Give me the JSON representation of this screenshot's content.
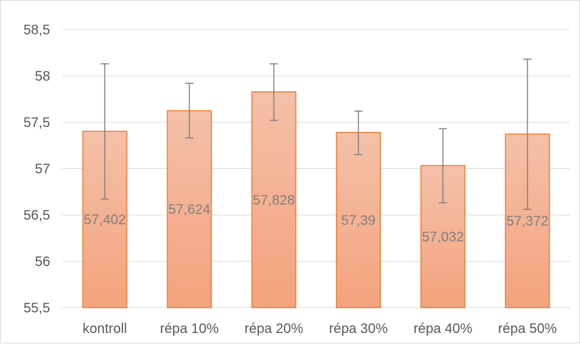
{
  "chart_data": {
    "type": "bar",
    "categories": [
      "kontroll",
      "répa 10%",
      "répa 20%",
      "répa 30%",
      "répa 40%",
      "répa 50%"
    ],
    "series": [
      {
        "values": [
          57.402,
          57.624,
          57.828,
          57.39,
          57.032,
          57.372
        ],
        "error_low": [
          56.67,
          57.33,
          57.52,
          57.15,
          56.63,
          56.56
        ],
        "error_high": [
          58.13,
          57.92,
          58.13,
          57.62,
          57.43,
          58.18
        ]
      }
    ],
    "data_labels": [
      "57,402",
      "57,624",
      "57,828",
      "57,39",
      "57,032",
      "57,372"
    ],
    "ylim": [
      55.5,
      58.5
    ],
    "yticks": [
      55.5,
      56,
      56.5,
      57,
      57.5,
      58,
      58.5
    ],
    "ytick_labels": [
      "55,5",
      "56",
      "56,5",
      "57",
      "57,5",
      "58",
      "58,5"
    ],
    "grid": true,
    "legend": "none",
    "colors": {
      "bar_fill_top": "#f4c0a8",
      "bar_fill_bottom": "#f4a37d",
      "bar_stroke": "#ed7d31",
      "error_bar": "#7f7f7f",
      "grid": "#d9d9d9"
    }
  }
}
